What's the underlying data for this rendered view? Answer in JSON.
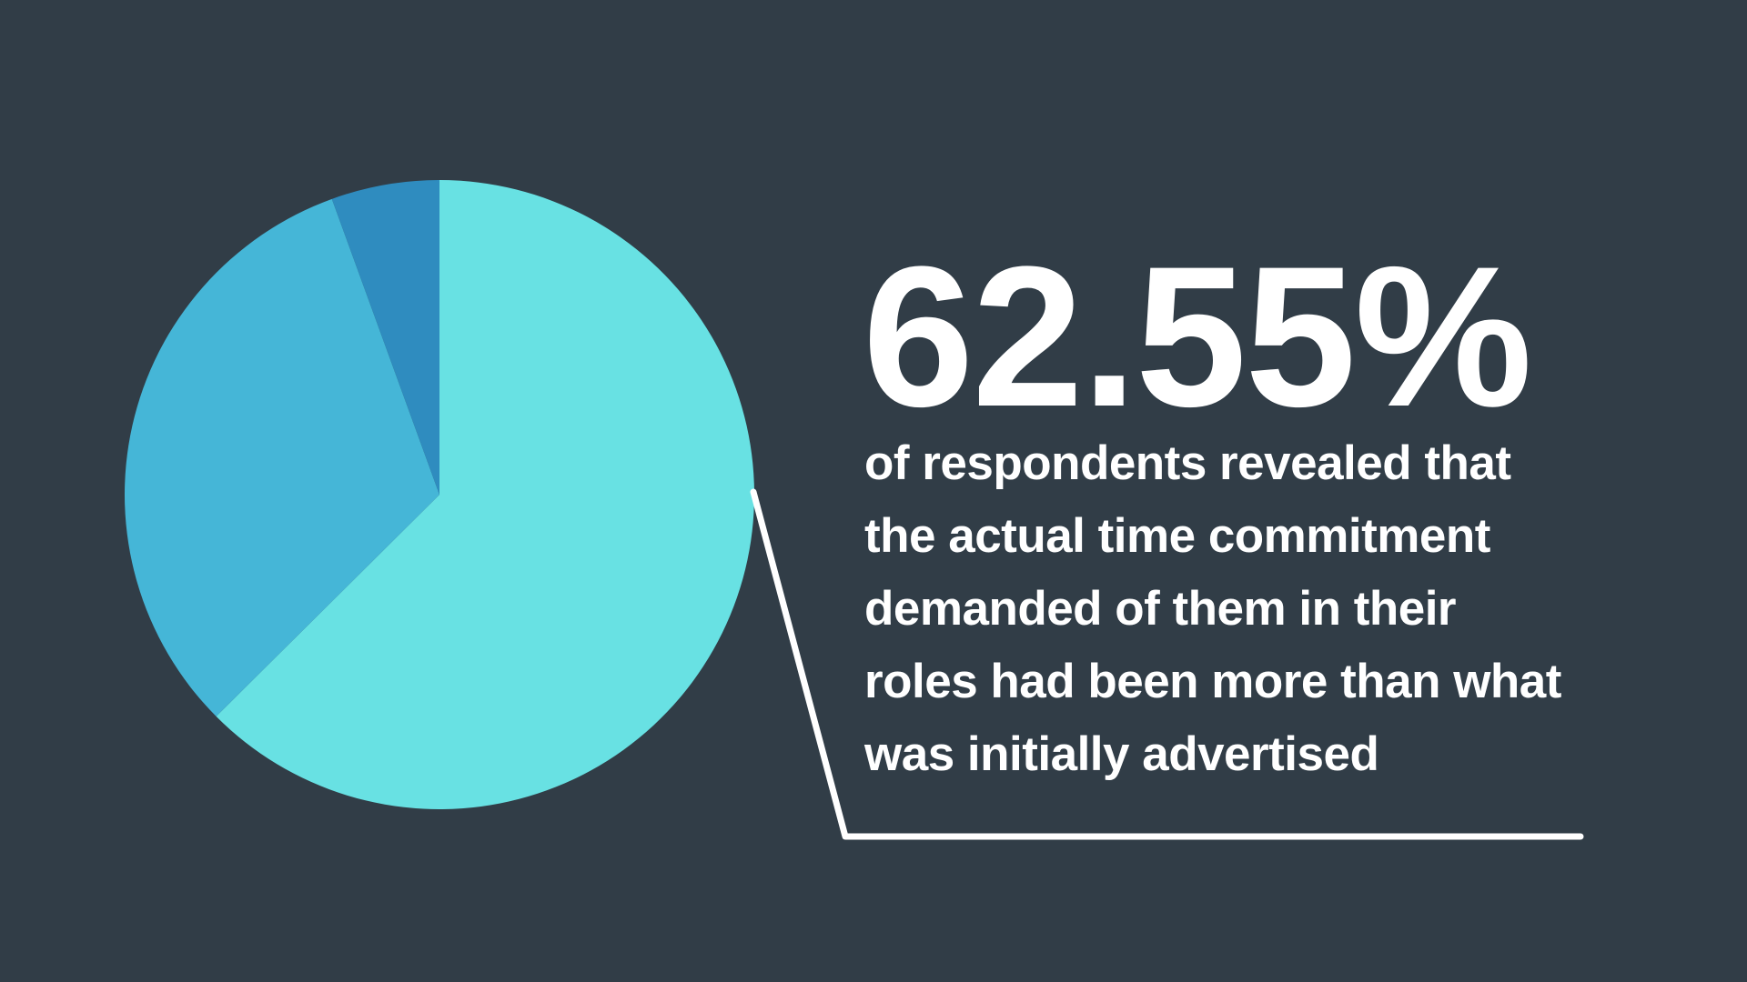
{
  "theme": {
    "background": "#313d47",
    "text_color": "#ffffff",
    "callout_line_color": "#ffffff"
  },
  "hero": {
    "headline_value": "62.55%",
    "description_lines": [
      "of respondents revealed that",
      "the actual time commitment",
      "demanded of them in their",
      "roles had been more than what",
      "was initially advertised"
    ]
  },
  "chart_data": {
    "type": "pie",
    "title": "",
    "legend": false,
    "start_angle_deg": 0,
    "direction": "clockwise",
    "segments": [
      {
        "value": 62.55,
        "color": "#68e1e3",
        "highlighted": true
      },
      {
        "value": 31.9,
        "color": "#45b6d7",
        "highlighted": false
      },
      {
        "value": 5.55,
        "color": "#2f8cbf",
        "highlighted": false
      }
    ],
    "annotation": "62.55% of respondents revealed that the actual time commitment demanded of them in their roles had been more than what was initially advertised"
  }
}
